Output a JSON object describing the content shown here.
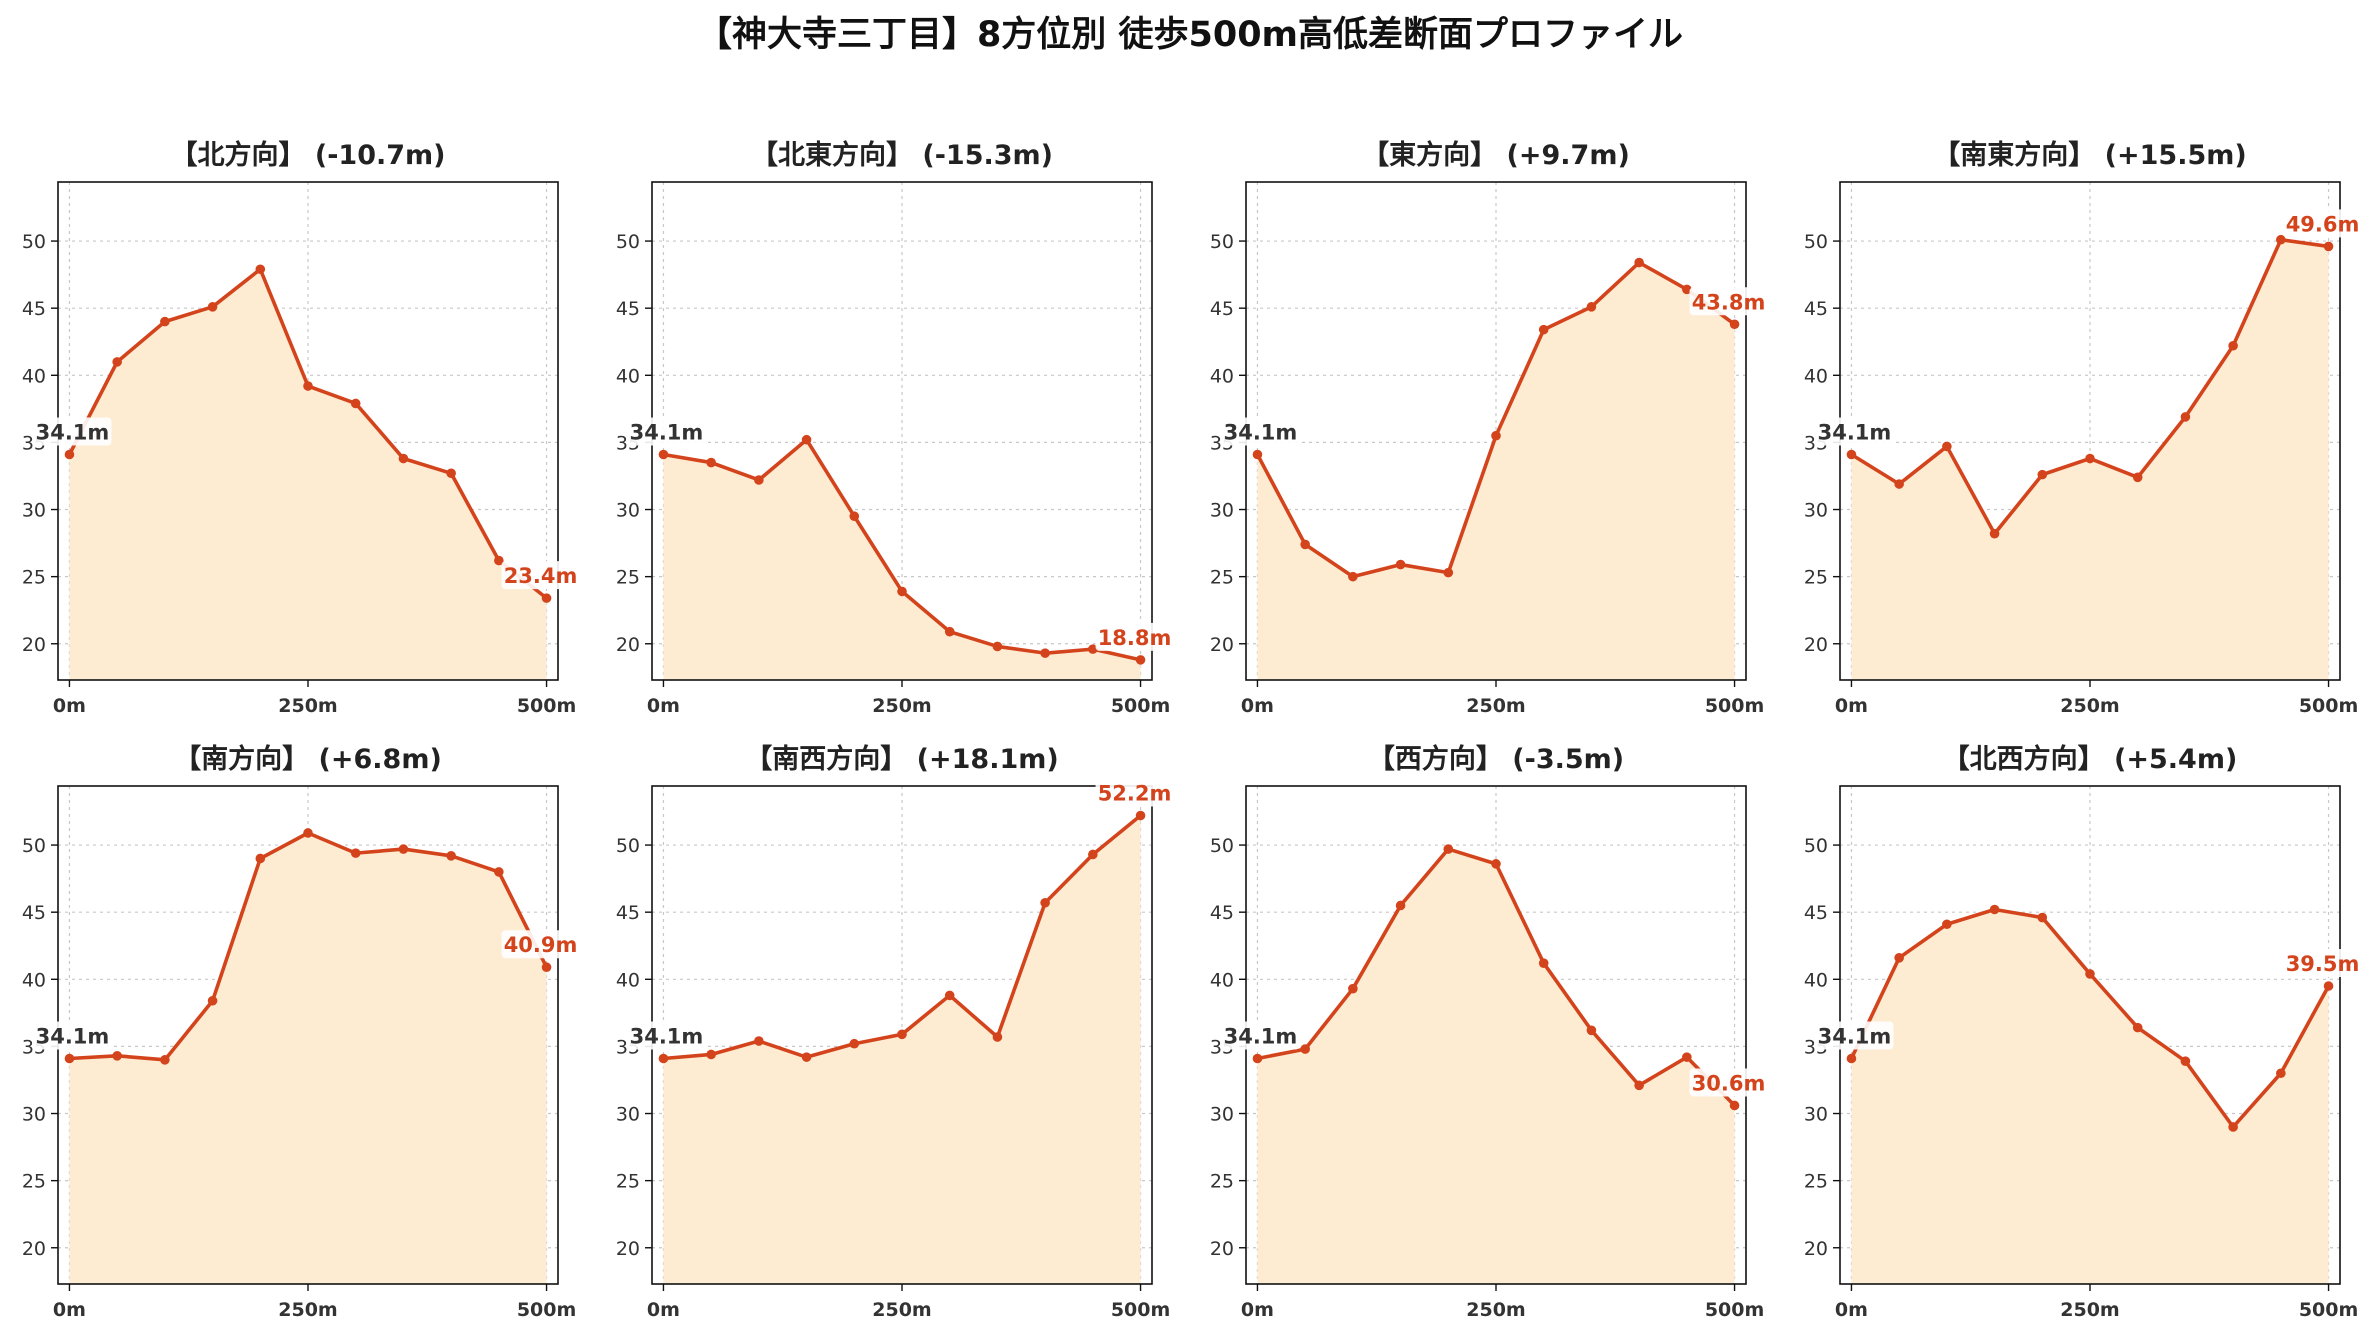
{
  "title": "【神大寺三丁目】8方位別 徒歩500m高低差断面プロファイル",
  "colors": {
    "line": "#d4441c",
    "fill": "#fdecd2",
    "grid": "#c8c8c8",
    "label_bg": "#ffffff"
  },
  "chart_data": [
    {
      "type": "area",
      "title": "【北方向】 (-10.7m)",
      "x": [
        0,
        50,
        100,
        150,
        200,
        250,
        300,
        350,
        400,
        450,
        500
      ],
      "y": [
        34.1,
        41.0,
        44.0,
        45.1,
        47.9,
        39.2,
        37.9,
        33.8,
        32.7,
        26.2,
        23.4
      ],
      "start_label": "34.1m",
      "end_label": "23.4m",
      "ylim": [
        17.3,
        54.4
      ],
      "yticks": [
        20,
        25,
        30,
        35,
        40,
        45,
        50
      ],
      "xlim": [
        -12,
        512
      ],
      "xticks": [
        0,
        250,
        500
      ],
      "xtick_labels": [
        "0m",
        "250m",
        "500m"
      ],
      "grid": true
    },
    {
      "type": "area",
      "title": "【北東方向】 (-15.3m)",
      "x": [
        0,
        50,
        100,
        150,
        200,
        250,
        300,
        350,
        400,
        450,
        500
      ],
      "y": [
        34.1,
        33.5,
        32.2,
        35.2,
        29.5,
        23.9,
        20.9,
        19.8,
        19.3,
        19.6,
        18.8
      ],
      "start_label": "34.1m",
      "end_label": "18.8m",
      "ylim": [
        17.3,
        54.4
      ],
      "yticks": [
        20,
        25,
        30,
        35,
        40,
        45,
        50
      ],
      "xlim": [
        -12,
        512
      ],
      "xticks": [
        0,
        250,
        500
      ],
      "xtick_labels": [
        "0m",
        "250m",
        "500m"
      ],
      "grid": true
    },
    {
      "type": "area",
      "title": "【東方向】 (+9.7m)",
      "x": [
        0,
        50,
        100,
        150,
        200,
        250,
        300,
        350,
        400,
        450,
        500
      ],
      "y": [
        34.1,
        27.4,
        25.0,
        25.9,
        25.3,
        35.5,
        43.4,
        45.1,
        48.4,
        46.4,
        43.8
      ],
      "start_label": "34.1m",
      "end_label": "43.8m",
      "ylim": [
        17.3,
        54.4
      ],
      "yticks": [
        20,
        25,
        30,
        35,
        40,
        45,
        50
      ],
      "xlim": [
        -12,
        512
      ],
      "xticks": [
        0,
        250,
        500
      ],
      "xtick_labels": [
        "0m",
        "250m",
        "500m"
      ],
      "grid": true
    },
    {
      "type": "area",
      "title": "【南東方向】 (+15.5m)",
      "x": [
        0,
        50,
        100,
        150,
        200,
        250,
        300,
        350,
        400,
        450,
        500
      ],
      "y": [
        34.1,
        31.9,
        34.7,
        28.2,
        32.6,
        33.8,
        32.4,
        36.9,
        42.2,
        50.1,
        49.6
      ],
      "start_label": "34.1m",
      "end_label": "49.6m",
      "ylim": [
        17.3,
        54.4
      ],
      "yticks": [
        20,
        25,
        30,
        35,
        40,
        45,
        50
      ],
      "xlim": [
        -12,
        512
      ],
      "xticks": [
        0,
        250,
        500
      ],
      "xtick_labels": [
        "0m",
        "250m",
        "500m"
      ],
      "grid": true
    },
    {
      "type": "area",
      "title": "【南方向】 (+6.8m)",
      "x": [
        0,
        50,
        100,
        150,
        200,
        250,
        300,
        350,
        400,
        450,
        500
      ],
      "y": [
        34.1,
        34.3,
        34.0,
        38.4,
        49.0,
        50.9,
        49.4,
        49.7,
        49.2,
        48.0,
        40.9
      ],
      "start_label": "34.1m",
      "end_label": "40.9m",
      "ylim": [
        17.3,
        54.4
      ],
      "yticks": [
        20,
        25,
        30,
        35,
        40,
        45,
        50
      ],
      "xlim": [
        -12,
        512
      ],
      "xticks": [
        0,
        250,
        500
      ],
      "xtick_labels": [
        "0m",
        "250m",
        "500m"
      ],
      "grid": true
    },
    {
      "type": "area",
      "title": "【南西方向】 (+18.1m)",
      "x": [
        0,
        50,
        100,
        150,
        200,
        250,
        300,
        350,
        400,
        450,
        500
      ],
      "y": [
        34.1,
        34.4,
        35.4,
        34.2,
        35.2,
        35.9,
        38.8,
        35.7,
        45.7,
        49.3,
        52.2
      ],
      "start_label": "34.1m",
      "end_label": "52.2m",
      "ylim": [
        17.3,
        54.4
      ],
      "yticks": [
        20,
        25,
        30,
        35,
        40,
        45,
        50
      ],
      "xlim": [
        -12,
        512
      ],
      "xticks": [
        0,
        250,
        500
      ],
      "xtick_labels": [
        "0m",
        "250m",
        "500m"
      ],
      "grid": true
    },
    {
      "type": "area",
      "title": "【西方向】 (-3.5m)",
      "x": [
        0,
        50,
        100,
        150,
        200,
        250,
        300,
        350,
        400,
        450,
        500
      ],
      "y": [
        34.1,
        34.8,
        39.3,
        45.5,
        49.7,
        48.6,
        41.2,
        36.2,
        32.1,
        34.2,
        30.6
      ],
      "start_label": "34.1m",
      "end_label": "30.6m",
      "ylim": [
        17.3,
        54.4
      ],
      "yticks": [
        20,
        25,
        30,
        35,
        40,
        45,
        50
      ],
      "xlim": [
        -12,
        512
      ],
      "xticks": [
        0,
        250,
        500
      ],
      "xtick_labels": [
        "0m",
        "250m",
        "500m"
      ],
      "grid": true
    },
    {
      "type": "area",
      "title": "【北西方向】 (+5.4m)",
      "x": [
        0,
        50,
        100,
        150,
        200,
        250,
        300,
        350,
        400,
        450,
        500
      ],
      "y": [
        34.1,
        41.6,
        44.1,
        45.2,
        44.6,
        40.4,
        36.4,
        33.9,
        29.0,
        33.0,
        39.5
      ],
      "start_label": "34.1m",
      "end_label": "39.5m",
      "ylim": [
        17.3,
        54.4
      ],
      "yticks": [
        20,
        25,
        30,
        35,
        40,
        45,
        50
      ],
      "xlim": [
        -12,
        512
      ],
      "xticks": [
        0,
        250,
        500
      ],
      "xtick_labels": [
        "0m",
        "250m",
        "500m"
      ],
      "grid": true
    }
  ]
}
